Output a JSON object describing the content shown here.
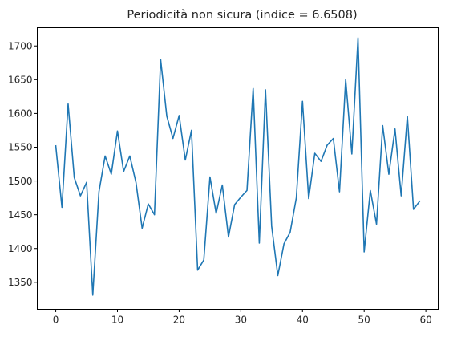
{
  "chart_data": {
    "type": "line",
    "title": "Periodicità non sicura (indice = 6.6508)",
    "xlabel": "",
    "ylabel": "",
    "xlim": [
      -3,
      62
    ],
    "ylim": [
      1310,
      1727
    ],
    "x_ticks": [
      0,
      10,
      20,
      30,
      40,
      50,
      60
    ],
    "y_ticks": [
      1350,
      1400,
      1450,
      1500,
      1550,
      1600,
      1650,
      1700
    ],
    "grid": false,
    "legend": "none",
    "series": [
      {
        "color": "#1f77b4",
        "x": [
          0,
          1,
          2,
          3,
          4,
          5,
          6,
          7,
          8,
          9,
          10,
          11,
          12,
          13,
          14,
          15,
          16,
          17,
          18,
          19,
          20,
          21,
          22,
          23,
          24,
          25,
          26,
          27,
          28,
          29,
          30,
          31,
          32,
          33,
          34,
          35,
          36,
          37,
          38,
          39,
          40,
          41,
          42,
          43,
          44,
          45,
          46,
          47,
          48,
          49,
          50,
          51,
          52,
          53,
          54,
          55,
          56,
          57,
          58,
          59
        ],
        "values": [
          1552,
          1461,
          1614,
          1505,
          1478,
          1498,
          1331,
          1484,
          1537,
          1510,
          1574,
          1514,
          1537,
          1498,
          1430,
          1466,
          1450,
          1680,
          1596,
          1563,
          1597,
          1531,
          1575,
          1368,
          1383,
          1506,
          1452,
          1494,
          1417,
          1465,
          1476,
          1486,
          1637,
          1408,
          1635,
          1433,
          1360,
          1407,
          1424,
          1475,
          1618,
          1474,
          1541,
          1529,
          1553,
          1563,
          1484,
          1650,
          1540,
          1712,
          1395,
          1486,
          1436,
          1582,
          1510,
          1577,
          1478,
          1596,
          1458,
          1470
        ]
      }
    ]
  }
}
